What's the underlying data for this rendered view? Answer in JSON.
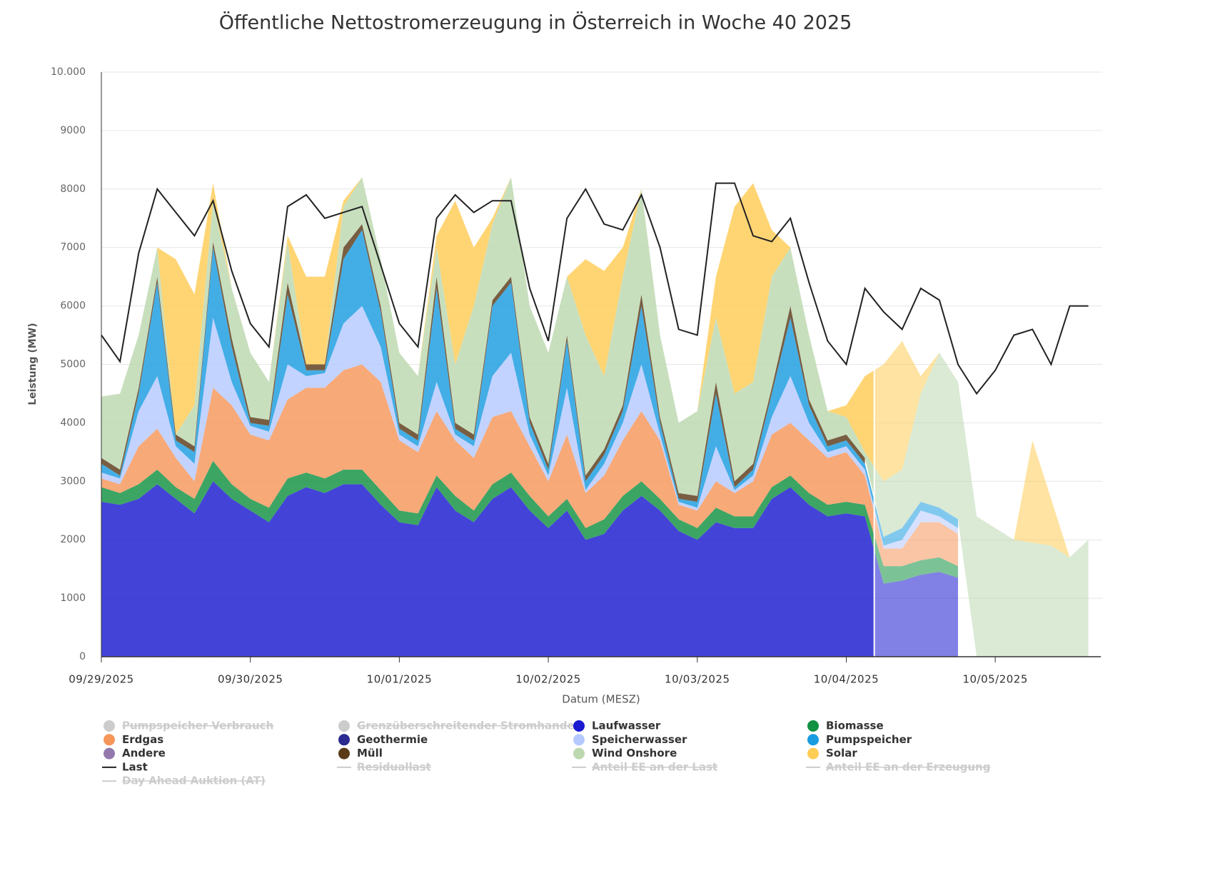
{
  "chart_data": {
    "type": "stacked-area",
    "title": "Öffentliche Nettostromerzeugung in Österreich in Woche 40 2025",
    "xlabel": "Datum (MESZ)",
    "ylabel": "Leistung (MW)",
    "xlim": [
      "09/29/2025 00:00",
      "10/05/2025 17:00"
    ],
    "xticks": [
      "09/29/2025",
      "09/30/2025",
      "10/01/2025",
      "10/02/2025",
      "10/03/2025",
      "10/04/2025",
      "10/05/2025"
    ],
    "ylim": [
      0,
      10000
    ],
    "yticks": [
      0,
      1000,
      2000,
      3000,
      4000,
      5000,
      6000,
      7000,
      8000,
      9000,
      {
        "value": 10000,
        "label": "10.000"
      }
    ],
    "grid": true,
    "forecast_start": "10/04/2025 06:00",
    "x": [
      "09/29/2025 00:00",
      "09/29/2025 03:00",
      "09/29/2025 06:00",
      "09/29/2025 09:00",
      "09/29/2025 12:00",
      "09/29/2025 15:00",
      "09/29/2025 18:00",
      "09/29/2025 21:00",
      "09/30/2025 00:00",
      "09/30/2025 03:00",
      "09/30/2025 06:00",
      "09/30/2025 09:00",
      "09/30/2025 12:00",
      "09/30/2025 15:00",
      "09/30/2025 18:00",
      "09/30/2025 21:00",
      "10/01/2025 00:00",
      "10/01/2025 03:00",
      "10/01/2025 06:00",
      "10/01/2025 09:00",
      "10/01/2025 12:00",
      "10/01/2025 15:00",
      "10/01/2025 18:00",
      "10/01/2025 21:00",
      "10/02/2025 00:00",
      "10/02/2025 03:00",
      "10/02/2025 06:00",
      "10/02/2025 09:00",
      "10/02/2025 12:00",
      "10/02/2025 15:00",
      "10/02/2025 18:00",
      "10/02/2025 21:00",
      "10/03/2025 00:00",
      "10/03/2025 03:00",
      "10/03/2025 06:00",
      "10/03/2025 09:00",
      "10/03/2025 12:00",
      "10/03/2025 15:00",
      "10/03/2025 18:00",
      "10/03/2025 21:00",
      "10/04/2025 00:00",
      "10/04/2025 03:00",
      "10/04/2025 06:00",
      "10/04/2025 09:00",
      "10/04/2025 12:00",
      "10/04/2025 15:00",
      "10/04/2025 18:00",
      "10/04/2025 21:00",
      "10/05/2025 00:00",
      "10/05/2025 03:00",
      "10/05/2025 06:00",
      "10/05/2025 09:00",
      "10/05/2025 12:00",
      "10/05/2025 15:00"
    ],
    "series": [
      {
        "name": "Pumpspeicher Verbrauch",
        "kind": "area",
        "visible": false,
        "color": "#cccccc"
      },
      {
        "name": "Grenzüberschreitender Stromhandel",
        "kind": "area",
        "visible": false,
        "color": "#cccccc"
      },
      {
        "name": "Laufwasser",
        "kind": "area",
        "visible": true,
        "color": "#1a1ad0",
        "values": [
          2650,
          2600,
          2700,
          2950,
          2700,
          2450,
          3000,
          2700,
          2500,
          2300,
          2750,
          2900,
          2800,
          2950,
          2950,
          2600,
          2300,
          2250,
          2900,
          2500,
          2300,
          2700,
          2900,
          2500,
          2200,
          2500,
          2000,
          2100,
          2500,
          2750,
          2500,
          2150,
          2000,
          2300,
          2200,
          2200,
          2700,
          2900,
          2600,
          2400,
          2450,
          2400,
          1250,
          1300,
          1400,
          1450,
          1350,
          null,
          null,
          null,
          null,
          null,
          null,
          null
        ]
      },
      {
        "name": "Biomasse",
        "kind": "area",
        "visible": true,
        "color": "#119142",
        "values": [
          250,
          200,
          250,
          250,
          200,
          250,
          350,
          250,
          200,
          250,
          300,
          250,
          250,
          250,
          250,
          250,
          200,
          200,
          200,
          250,
          200,
          250,
          250,
          250,
          200,
          200,
          200,
          250,
          250,
          250,
          200,
          200,
          200,
          250,
          200,
          200,
          200,
          200,
          200,
          200,
          200,
          200,
          300,
          250,
          250,
          250,
          200,
          null,
          null,
          null,
          null,
          null,
          null,
          null
        ]
      },
      {
        "name": "Erdgas",
        "kind": "area",
        "visible": true,
        "color": "#f5965a",
        "values": [
          150,
          150,
          650,
          700,
          500,
          300,
          1250,
          1350,
          1100,
          1150,
          1350,
          1450,
          1550,
          1700,
          1800,
          1850,
          1200,
          1050,
          1100,
          950,
          900,
          1150,
          1050,
          850,
          600,
          1100,
          600,
          750,
          950,
          1200,
          1000,
          250,
          300,
          450,
          400,
          600,
          900,
          900,
          900,
          800,
          850,
          500,
          300,
          300,
          650,
          600,
          550,
          null,
          null,
          null,
          null,
          null,
          null,
          null
        ]
      },
      {
        "name": "Geothermie",
        "kind": "area",
        "visible": true,
        "color": "#2a2a90",
        "values": [
          0,
          0,
          0,
          0,
          0,
          0,
          0,
          0,
          0,
          0,
          0,
          0,
          0,
          0,
          0,
          0,
          0,
          0,
          0,
          0,
          0,
          0,
          0,
          0,
          0,
          0,
          0,
          0,
          0,
          0,
          0,
          0,
          0,
          0,
          0,
          0,
          0,
          0,
          0,
          0,
          0,
          0,
          null,
          null,
          null,
          null,
          null,
          null,
          null,
          null,
          null,
          null,
          null,
          null
        ]
      },
      {
        "name": "Speicherwasser",
        "kind": "area",
        "visible": true,
        "color": "#b6c9ff",
        "values": [
          100,
          100,
          600,
          900,
          200,
          300,
          1200,
          400,
          150,
          150,
          600,
          200,
          250,
          800,
          1000,
          600,
          100,
          100,
          500,
          100,
          200,
          700,
          1000,
          200,
          100,
          800,
          50,
          200,
          300,
          800,
          100,
          50,
          50,
          600,
          50,
          100,
          300,
          800,
          300,
          100,
          100,
          100,
          50,
          150,
          200,
          100,
          100,
          null,
          null,
          null,
          null,
          null,
          null,
          null
        ]
      },
      {
        "name": "Pumpspeicher",
        "kind": "area",
        "visible": true,
        "color": "#1a9ce0",
        "values": [
          150,
          50,
          300,
          1600,
          100,
          200,
          1200,
          600,
          50,
          100,
          1200,
          100,
          50,
          1100,
          1300,
          600,
          100,
          100,
          1600,
          100,
          100,
          1200,
          1200,
          200,
          100,
          800,
          150,
          150,
          200,
          1000,
          200,
          50,
          100,
          900,
          50,
          100,
          400,
          1000,
          300,
          100,
          100,
          100,
          150,
          200,
          150,
          150,
          150,
          null,
          null,
          null,
          null,
          null,
          null,
          null
        ]
      },
      {
        "name": "Andere",
        "kind": "area",
        "visible": true,
        "color": "#9478ad",
        "values": [
          0,
          0,
          0,
          0,
          0,
          0,
          0,
          0,
          0,
          0,
          0,
          0,
          0,
          0,
          0,
          0,
          0,
          0,
          0,
          0,
          0,
          0,
          0,
          0,
          0,
          0,
          0,
          0,
          0,
          0,
          0,
          0,
          0,
          0,
          0,
          0,
          0,
          0,
          0,
          0,
          0,
          0,
          null,
          null,
          null,
          null,
          null,
          null,
          null,
          null,
          null,
          null,
          null,
          null
        ]
      },
      {
        "name": "Müll",
        "kind": "area",
        "visible": true,
        "color": "#5a3a18",
        "values": [
          100,
          100,
          100,
          100,
          100,
          100,
          100,
          150,
          100,
          100,
          200,
          100,
          100,
          200,
          100,
          100,
          100,
          100,
          200,
          100,
          100,
          100,
          100,
          100,
          100,
          100,
          100,
          100,
          100,
          200,
          100,
          100,
          100,
          200,
          100,
          100,
          100,
          200,
          100,
          100,
          100,
          100,
          null,
          null,
          null,
          null,
          null,
          null,
          null,
          null,
          null,
          null,
          null,
          null
        ]
      },
      {
        "name": "Wind Onshore",
        "kind": "area",
        "visible": true,
        "color": "#bcd8b0",
        "values": [
          1050,
          1300,
          900,
          500,
          0,
          700,
          700,
          850,
          1100,
          650,
          700,
          0,
          0,
          700,
          800,
          800,
          1200,
          1000,
          500,
          1000,
          2200,
          1300,
          1700,
          1900,
          1900,
          1000,
          2400,
          1250,
          2200,
          1800,
          1400,
          1200,
          1450,
          1100,
          1500,
          1400,
          1900,
          1000,
          1100,
          500,
          300,
          100,
          950,
          1000,
          1850,
          2650,
          2350,
          2400,
          2200,
          2000,
          1950,
          1900,
          1700,
          2000
        ]
      },
      {
        "name": "Solar",
        "kind": "area",
        "visible": true,
        "color": "#ffcc55",
        "values": [
          0,
          0,
          0,
          0,
          3000,
          1900,
          300,
          0,
          0,
          0,
          100,
          1500,
          1500,
          100,
          0,
          0,
          0,
          0,
          200,
          2800,
          1000,
          100,
          0,
          0,
          0,
          0,
          1300,
          1800,
          500,
          0,
          0,
          0,
          0,
          700,
          3200,
          3400,
          800,
          0,
          0,
          0,
          200,
          1300,
          2000,
          2200,
          300,
          0,
          0,
          0,
          0,
          0,
          1750,
          800,
          0,
          0
        ]
      },
      {
        "name": "Last",
        "kind": "line",
        "visible": true,
        "color": "#222222",
        "values": [
          5500,
          5050,
          6900,
          8000,
          7600,
          7200,
          7800,
          6600,
          5700,
          5300,
          7700,
          7900,
          7500,
          7600,
          7700,
          6700,
          5700,
          5300,
          7500,
          7900,
          7600,
          7800,
          7800,
          6300,
          5400,
          7500,
          8000,
          7400,
          7300,
          7900,
          7000,
          5600,
          5500,
          8100,
          8100,
          7200,
          7100,
          7500,
          6400,
          5400,
          5000,
          6300,
          5900,
          5600,
          6300,
          6100,
          5000,
          4500,
          4900,
          5500,
          5600,
          5000,
          6000,
          6000
        ]
      },
      {
        "name": "Residuallast",
        "kind": "line",
        "visible": false,
        "color": "#cccccc"
      },
      {
        "name": "Anteil EE an der Last",
        "kind": "line",
        "visible": false,
        "color": "#cccccc"
      },
      {
        "name": "Anteil EE an der Erzeugung",
        "kind": "line",
        "visible": false,
        "color": "#cccccc"
      },
      {
        "name": "Day Ahead Auktion (AT)",
        "kind": "line",
        "visible": false,
        "color": "#cccccc"
      }
    ]
  }
}
